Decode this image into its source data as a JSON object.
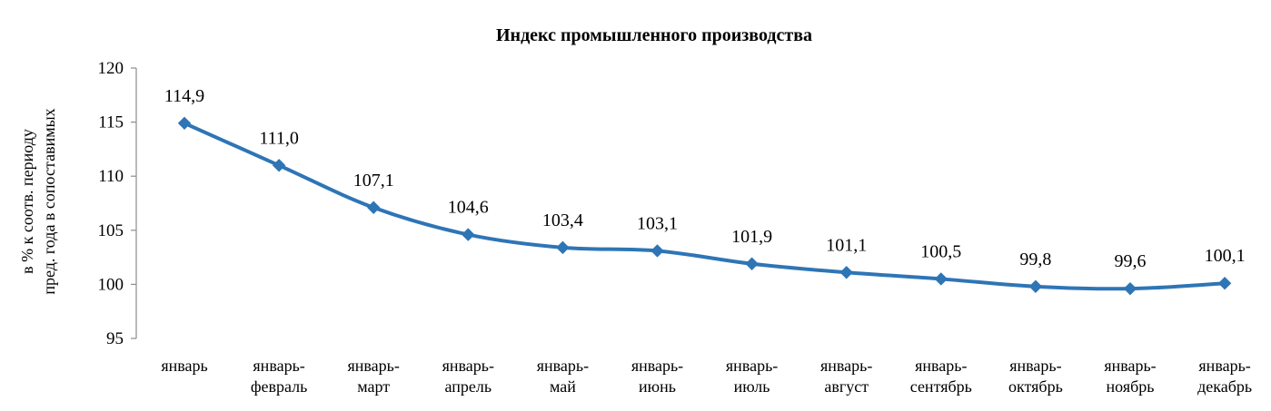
{
  "chart_data": {
    "type": "line",
    "title": "Индекс промышленного производства",
    "ylabel": [
      "в % к соотв. периоду",
      "пред. года в сопоставимых"
    ],
    "xlabel": "",
    "ylim": [
      95,
      120
    ],
    "yticks": [
      95,
      100,
      105,
      110,
      115,
      120
    ],
    "ytick_labels": [
      "95",
      "100",
      "105",
      "110",
      "115",
      "120"
    ],
    "grid": false,
    "legend": "none",
    "categories": [
      [
        "январь"
      ],
      [
        "январь-",
        "февраль"
      ],
      [
        "январь-",
        "март"
      ],
      [
        "январь-",
        "апрель"
      ],
      [
        "январь-",
        "май"
      ],
      [
        "январь-",
        "июнь"
      ],
      [
        "январь-",
        "июль"
      ],
      [
        "январь-",
        "август"
      ],
      [
        "январь-",
        "сентябрь"
      ],
      [
        "январь-",
        "октябрь"
      ],
      [
        "январь-",
        "ноябрь"
      ],
      [
        "январь-",
        "декабрь"
      ]
    ],
    "series": [
      {
        "values": [
          114.9,
          111.0,
          107.1,
          104.6,
          103.4,
          103.1,
          101.9,
          101.1,
          100.5,
          99.8,
          99.6,
          100.1
        ],
        "labels": [
          "114,9",
          "111,0",
          "107,1",
          "104,6",
          "103,4",
          "103,1",
          "101,9",
          "101,1",
          "100,5",
          "99,8",
          "99,6",
          "100,1"
        ],
        "color": "#2e75b6",
        "marker": "diamond"
      }
    ]
  }
}
